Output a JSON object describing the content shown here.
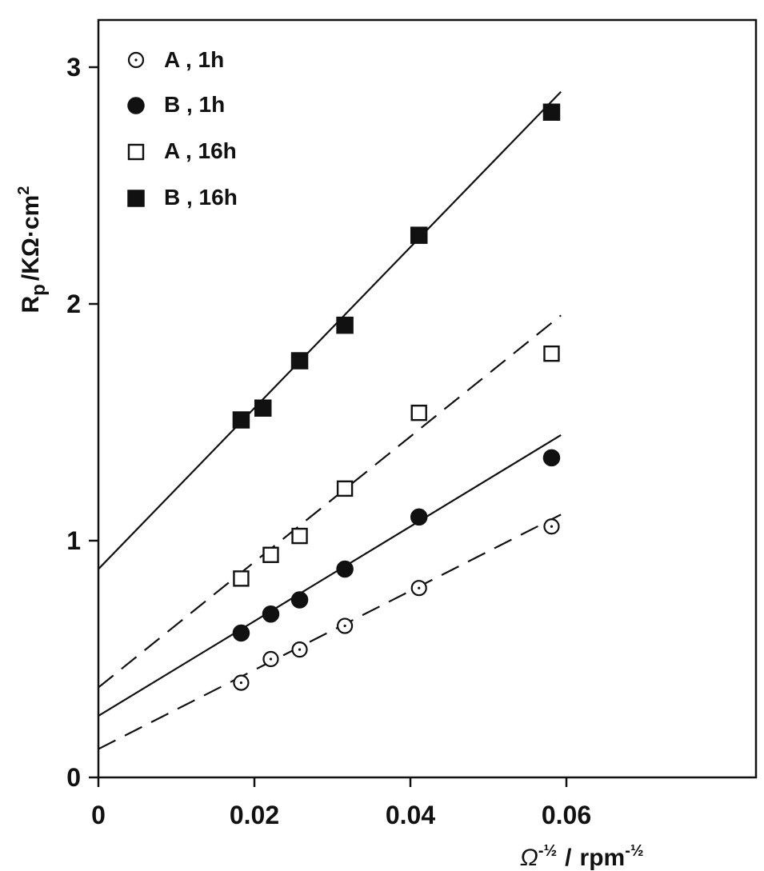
{
  "chart_data": {
    "type": "scatter",
    "title": "",
    "xlabel": {
      "main": "Ω",
      "main_sup": "-½",
      "sep": "/",
      "unit": "rpm",
      "unit_sup": "-½"
    },
    "ylabel": {
      "main": "R",
      "sub": "p",
      "sep": "/",
      "unit": "KΩ·cm",
      "unit_sup": "2"
    },
    "xlim": [
      0,
      0.07
    ],
    "ylim": [
      0,
      3.2
    ],
    "xticks": [
      0,
      0.02,
      0.04,
      0.06
    ],
    "xtick_labels": [
      "0",
      "0.02",
      "0.04",
      "0.06"
    ],
    "yticks": [
      0,
      1,
      2,
      3
    ],
    "ytick_labels": [
      "0",
      "1",
      "2",
      "3"
    ],
    "legend_position": "top-left",
    "series": [
      {
        "name": "A , 1h",
        "marker": "open-circle",
        "line": "dashed",
        "x": [
          0.0183,
          0.0221,
          0.0258,
          0.0316,
          0.0411,
          0.0581
        ],
        "y": [
          0.4,
          0.5,
          0.54,
          0.64,
          0.8,
          1.06
        ],
        "fit": {
          "intercept": 0.12,
          "slope": 16.7,
          "x_end": 0.0593
        }
      },
      {
        "name": "B , 1h",
        "marker": "filled-circle",
        "line": "solid",
        "x": [
          0.0183,
          0.0221,
          0.0258,
          0.0316,
          0.0411,
          0.0581
        ],
        "y": [
          0.61,
          0.69,
          0.75,
          0.88,
          1.1,
          1.35
        ],
        "fit": {
          "intercept": 0.26,
          "slope": 20.0,
          "x_end": 0.0593
        }
      },
      {
        "name": "A , 16h",
        "marker": "open-square",
        "line": "dashed",
        "x": [
          0.0183,
          0.0221,
          0.0258,
          0.0316,
          0.0411,
          0.0581
        ],
        "y": [
          0.84,
          0.94,
          1.02,
          1.22,
          1.54,
          1.79
        ],
        "fit": {
          "intercept": 0.38,
          "slope": 26.5,
          "x_end": 0.0593
        }
      },
      {
        "name": "B , 16h",
        "marker": "filled-square",
        "line": "solid",
        "x": [
          0.0183,
          0.0211,
          0.0258,
          0.0316,
          0.0411,
          0.0581
        ],
        "y": [
          1.51,
          1.56,
          1.76,
          1.91,
          2.29,
          2.81
        ],
        "fit": {
          "intercept": 0.88,
          "slope": 34.0,
          "x_end": 0.0593
        }
      }
    ]
  }
}
